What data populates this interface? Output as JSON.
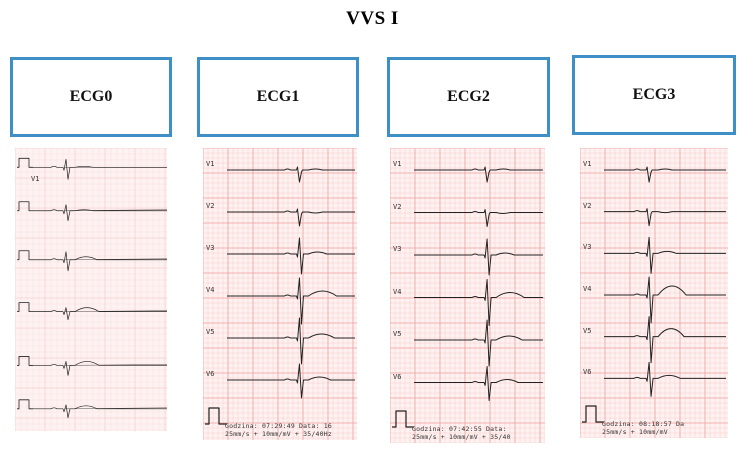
{
  "title": "VVS I",
  "panels": [
    {
      "label": "ECG0",
      "leads": [
        "",
        "V1",
        "",
        "",
        "",
        "",
        ""
      ],
      "footer": [
        "",
        ""
      ]
    },
    {
      "label": "ECG1",
      "leads": [
        "V1",
        "V2",
        "V3",
        "V4",
        "V5",
        "V6"
      ],
      "footer": [
        "Godzina: 07:29:49 Data: 16",
        "25mm/s + 10mm/mV + 35/40Hz"
      ]
    },
    {
      "label": "ECG2",
      "leads": [
        "V1",
        "V2",
        "V3",
        "V4",
        "V5",
        "V6"
      ],
      "footer": [
        "Godzina: 07:42:55 Data:",
        "25mm/s + 10mm/mV + 35/40"
      ]
    },
    {
      "label": "ECG3",
      "leads": [
        "V1",
        "V2",
        "V3",
        "V4",
        "V5",
        "V6"
      ],
      "footer": [
        "Godzina: 08:18:57 Da",
        "25mm/s + 10mm/mV"
      ]
    }
  ],
  "colors": {
    "box_border": "#3d8fc6",
    "grid_minor": "#f6c9c6",
    "grid_major": "#ee9f9a",
    "trace": "#222222"
  }
}
